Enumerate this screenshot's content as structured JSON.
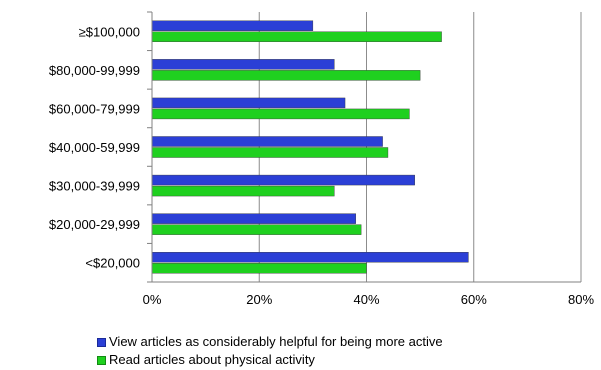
{
  "chart_data": {
    "type": "bar",
    "orientation": "horizontal",
    "categories": [
      "≥$100,000",
      "$80,000-99,999",
      "$60,000-79,999",
      "$40,000-59,999",
      "$30,000-39,999",
      "$20,000-29,999",
      "<$20,000"
    ],
    "series": [
      {
        "name": "View articles as considerably helpful for being more active",
        "color": "#2b3fd6",
        "values": [
          30,
          34,
          36,
          43,
          49,
          38,
          59
        ]
      },
      {
        "name": "Read articles about physical activity",
        "color": "#1fd01f",
        "values": [
          54,
          50,
          48,
          44,
          34,
          39,
          40
        ]
      }
    ],
    "xlim": [
      0,
      80
    ],
    "xticks": [
      "0%",
      "20%",
      "40%",
      "60%",
      "80%"
    ],
    "grid": true,
    "legend_position": "bottom"
  }
}
